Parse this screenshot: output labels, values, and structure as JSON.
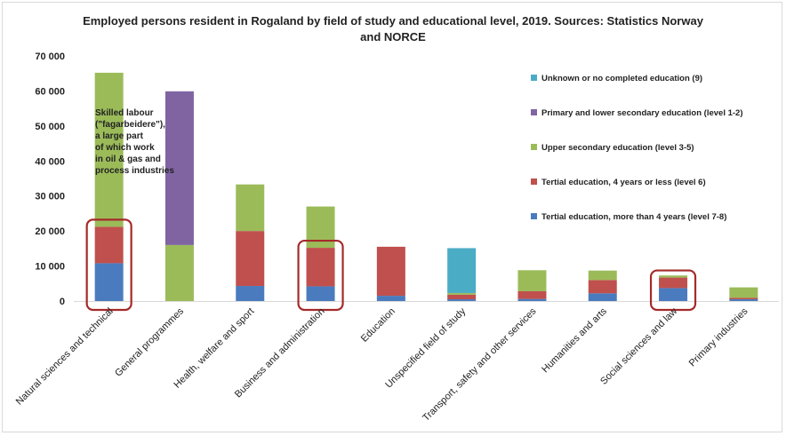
{
  "chart_data": {
    "type": "bar",
    "stacked": true,
    "title_lines": [
      "Employed persons resident in Rogaland by field of study and educational level, 2019. Sources: Statistics Norway",
      "and NORCE"
    ],
    "xlabel": "",
    "ylabel": "",
    "ylim": [
      0,
      70000
    ],
    "yticks": [
      "0",
      "10 000",
      "20 000",
      "30 000",
      "40 000",
      "50 000",
      "60 000",
      "70 000"
    ],
    "ytick_values": [
      0,
      10000,
      20000,
      30000,
      40000,
      50000,
      60000,
      70000
    ],
    "grid": false,
    "legend_position": "right",
    "categories": [
      "Natural sciences and technical",
      "General programmes",
      "Health, welfare and sport",
      "Business and administration",
      "Education",
      "Unspecified field of study",
      "Transport, safety and other services",
      "Humanities and arts",
      "Social sciences and law",
      "Primary industries"
    ],
    "series": [
      {
        "name": "Tertial education, more than 4 years (level 7-8)",
        "color": "#4a7bbf",
        "values": [
          10800,
          0,
          4300,
          4200,
          1500,
          500,
          600,
          2200,
          3700,
          500
        ]
      },
      {
        "name": "Tertial education, 4 years or less (level 6)",
        "color": "#c0504d",
        "values": [
          10400,
          0,
          15700,
          11000,
          14000,
          1300,
          2200,
          3800,
          3000,
          400
        ]
      },
      {
        "name": "Upper secondary education (level 3-5)",
        "color": "#9bbb59",
        "values": [
          44000,
          16000,
          13300,
          11800,
          0,
          500,
          6000,
          2700,
          600,
          3000
        ]
      },
      {
        "name": "Primary and lower secondary education (level 1-2)",
        "color": "#8064a2",
        "values": [
          0,
          43900,
          0,
          0,
          0,
          0,
          0,
          0,
          0,
          0
        ]
      },
      {
        "name": "Unknown or no completed education (9)",
        "color": "#4bacc6",
        "values": [
          0,
          0,
          0,
          0,
          0,
          12800,
          0,
          0,
          0,
          0
        ]
      }
    ],
    "legend_order": [
      "Unknown or no completed education (9)",
      "Primary and lower secondary education (level 1-2)",
      "Upper secondary education (level 3-5)",
      "Tertial education, 4 years or less (level 6)",
      "Tertial education, more than 4 years (level 7-8)"
    ],
    "annotation": {
      "lines": [
        "Skilled labour",
        "(\"fagarbeidere\"),",
        "a large part",
        "of which work",
        "in oil & gas and",
        "process industries"
      ]
    },
    "highlighted_categories": [
      "Natural sciences and technical",
      "Business and administration",
      "Social sciences and law"
    ],
    "highlight_color": "#a52a2a"
  }
}
